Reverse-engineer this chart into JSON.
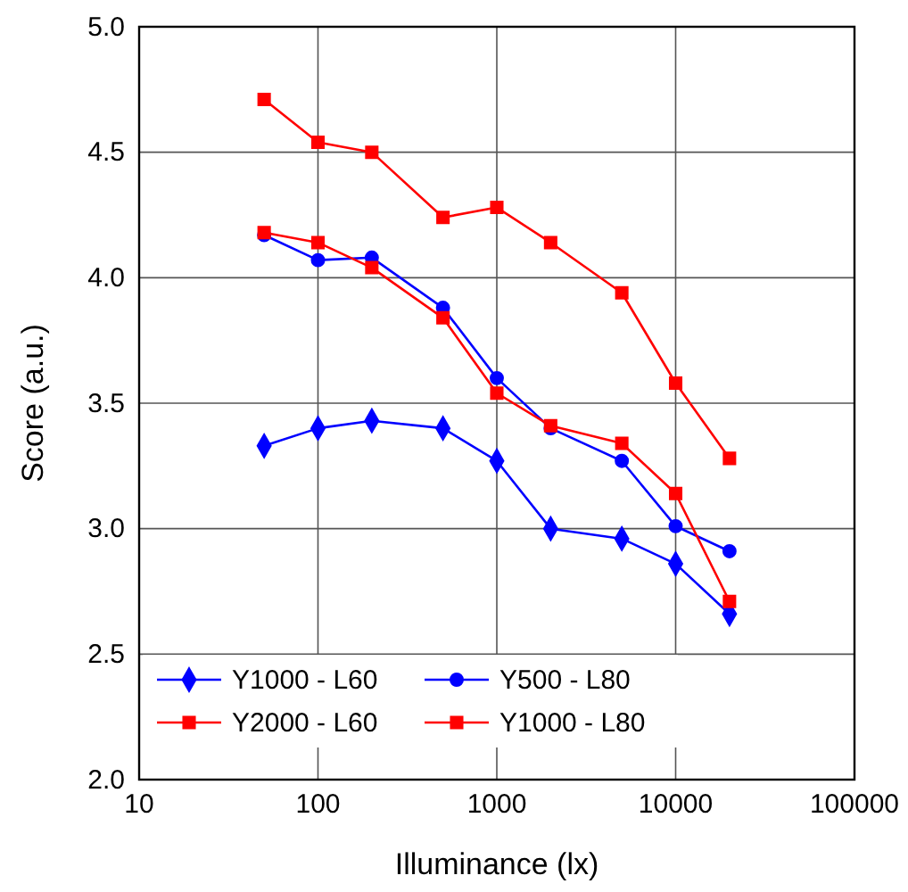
{
  "chart_data": {
    "type": "line",
    "xlabel": "Illuminance (lx)",
    "ylabel": "Score (a.u.)",
    "log": "x",
    "grid": true,
    "legend": "bottom left",
    "line_style": "solid",
    "x": [
      50,
      100,
      200,
      500,
      1000,
      2000,
      5000,
      10000,
      20000
    ],
    "xlim": [
      10,
      100000
    ],
    "xticks": [
      10,
      100,
      1000,
      10000,
      100000
    ],
    "ylim": [
      2,
      5
    ],
    "yticks": [
      {
        "value": 2,
        "label": "2.0"
      },
      {
        "value": 2.5,
        "label": "2.5"
      },
      {
        "value": 3,
        "label": "3.0"
      },
      {
        "value": 3.5,
        "label": "3.5"
      },
      {
        "value": 4,
        "label": "4.0"
      },
      {
        "value": 4.5,
        "label": "4.5"
      },
      {
        "value": 5,
        "label": "5.0"
      }
    ],
    "series": [
      {
        "name": "Y1000 - L60",
        "color": "#0000ff",
        "marker": "diamond",
        "values": [
          3.33,
          3.4,
          3.43,
          3.4,
          3.27,
          3.0,
          2.96,
          2.86,
          2.66
        ]
      },
      {
        "name": "Y500 - L80",
        "color": "#0000ff",
        "marker": "circle",
        "values": [
          4.17,
          4.07,
          4.08,
          3.88,
          3.6,
          3.4,
          3.27,
          3.01,
          2.91
        ]
      },
      {
        "name": "Y2000 - L60",
        "color": "#ff0000",
        "marker": "square",
        "values": [
          4.18,
          4.14,
          4.04,
          3.84,
          3.54,
          3.41,
          3.34,
          3.14,
          2.71
        ]
      },
      {
        "name": "Y1000 - L80",
        "color": "#ff0000",
        "marker": "square",
        "values": [
          4.71,
          4.54,
          4.5,
          4.24,
          4.28,
          4.14,
          3.94,
          3.58,
          3.28
        ]
      }
    ]
  }
}
